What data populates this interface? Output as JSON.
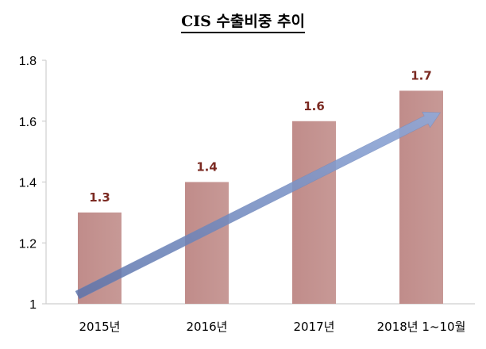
{
  "chart_data": {
    "type": "bar",
    "title": "CIS 수출비중 추이",
    "xlabel": "",
    "ylabel": "",
    "categories": [
      "2015년",
      "2016년",
      "2017년",
      "2018년 1~10월"
    ],
    "values": [
      1.3,
      1.4,
      1.6,
      1.7
    ],
    "data_labels": [
      "1.3",
      "1.4",
      "1.6",
      "1.7"
    ],
    "ylim": [
      1,
      1.8
    ],
    "yticks": [
      1,
      1.2,
      1.4,
      1.6,
      1.8
    ],
    "ytick_labels": [
      "1",
      "1.2",
      "1.4",
      "1.6",
      "1.8"
    ],
    "grid": false,
    "legend": "none",
    "trend_arrow": true
  },
  "colors": {
    "bar": "#c49290",
    "data_label": "#7b2a22",
    "arrow": "#7f95c4",
    "axis": "#cfcfcf"
  }
}
